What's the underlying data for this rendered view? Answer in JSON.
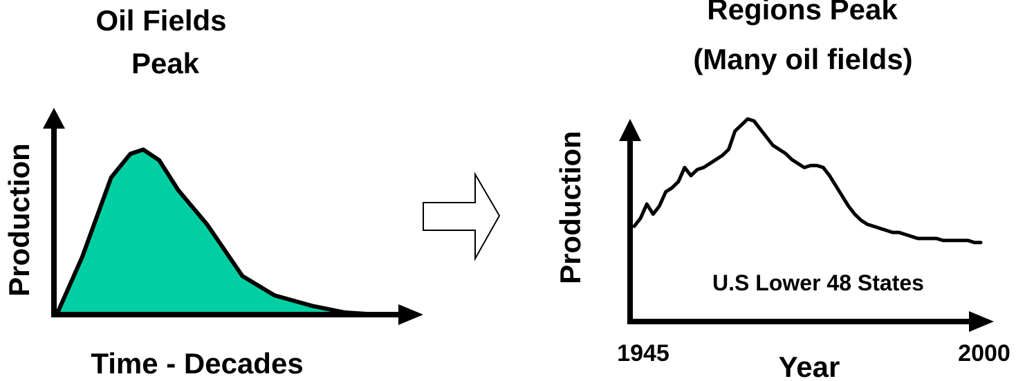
{
  "left_panel": {
    "title_line1": "Oil Fields",
    "title_line2": "Peak",
    "y_label": "Production",
    "x_label": "Time - Decades",
    "fill_color": "#00CFA3"
  },
  "transition_arrow": {
    "icon": "hollow-right-arrow"
  },
  "right_panel": {
    "title_line1": "Regions Peak",
    "title_line2": "(Many oil fields)",
    "y_label": "Production",
    "x_label": "Year",
    "x_start": "1945",
    "x_end": "2000",
    "annotation": "U.S Lower 48 States"
  },
  "chart_data": [
    {
      "type": "area",
      "title": "Oil Fields Peak",
      "xlabel": "Time - Decades",
      "ylabel": "Production",
      "x": [
        0,
        0.08,
        0.17,
        0.23,
        0.27,
        0.32,
        0.38,
        0.47,
        0.58,
        0.68,
        0.8,
        0.9,
        1.0
      ],
      "values": [
        0,
        0.27,
        0.64,
        0.75,
        0.77,
        0.72,
        0.58,
        0.42,
        0.18,
        0.09,
        0.04,
        0.01,
        0
      ],
      "grid": false
    },
    {
      "type": "line",
      "title": "Regions Peak (Many oil fields)",
      "xlabel": "Year",
      "ylabel": "Production",
      "x": [
        1945,
        1946,
        1947,
        1948,
        1949,
        1950,
        1951,
        1952,
        1953,
        1954,
        1955,
        1956,
        1957,
        1958,
        1959,
        1960,
        1961,
        1962,
        1963,
        1964,
        1965,
        1966,
        1967,
        1968,
        1969,
        1970,
        1971,
        1972,
        1973,
        1974,
        1975,
        1976,
        1977,
        1978,
        1979,
        1980,
        1981,
        1982,
        1983,
        1984,
        1985,
        1986,
        1987,
        1988,
        1989,
        1990,
        1991,
        1992,
        1993,
        1994,
        1995,
        1996,
        1997,
        1998,
        1999,
        2000
      ],
      "values": [
        0.47,
        0.51,
        0.58,
        0.53,
        0.57,
        0.64,
        0.66,
        0.69,
        0.76,
        0.72,
        0.75,
        0.76,
        0.78,
        0.8,
        0.82,
        0.85,
        0.94,
        0.97,
        1.0,
        0.99,
        0.95,
        0.91,
        0.87,
        0.85,
        0.83,
        0.8,
        0.78,
        0.76,
        0.77,
        0.77,
        0.76,
        0.72,
        0.67,
        0.62,
        0.57,
        0.53,
        0.5,
        0.48,
        0.47,
        0.46,
        0.45,
        0.44,
        0.44,
        0.43,
        0.42,
        0.41,
        0.41,
        0.41,
        0.41,
        0.4,
        0.4,
        0.4,
        0.4,
        0.4,
        0.39,
        0.39
      ],
      "xlim": [
        1945,
        2000
      ],
      "annotation": "U.S Lower 48 States",
      "grid": false
    }
  ]
}
